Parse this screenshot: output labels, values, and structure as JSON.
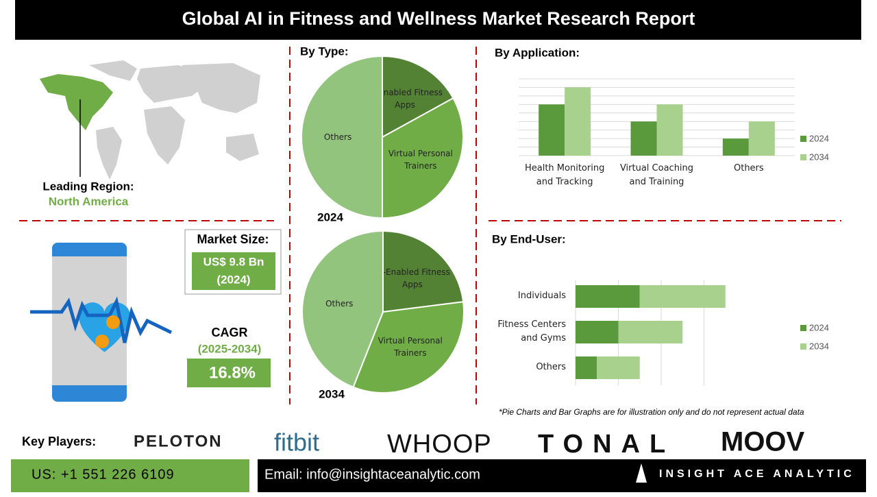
{
  "header": {
    "title": "Global AI in Fitness and Wellness Market Research Report"
  },
  "region": {
    "label": "Leading Region:",
    "value": "North America"
  },
  "market_size": {
    "label": "Market Size:",
    "value": "US$ 9.8 Bn",
    "year": "(2024)"
  },
  "cagr": {
    "label": "CAGR",
    "period": "(2025-2034)",
    "value": "16.8%"
  },
  "chart_data": [
    {
      "type": "pie",
      "title": "By Type:",
      "subtitle": "2024",
      "categories": [
        "AI-Enabled Fitness Apps",
        "Virtual Personal Trainers",
        "Others"
      ],
      "values": [
        17,
        33,
        50
      ],
      "colors": [
        "#548235",
        "#70ad47",
        "#93c47d"
      ]
    },
    {
      "type": "pie",
      "subtitle": "2034",
      "categories": [
        "AI-Enabled Fitness Apps",
        "Virtual Personal Trainers",
        "Others"
      ],
      "values": [
        23,
        33,
        44
      ],
      "colors": [
        "#548235",
        "#70ad47",
        "#93c47d"
      ]
    },
    {
      "type": "bar",
      "title": "By Application:",
      "categories": [
        "Health Monitoring and Tracking",
        "Virtual Coaching and Training",
        "Others"
      ],
      "series": [
        {
          "name": "2024",
          "color": "#5b9a3c",
          "values": [
            6,
            4,
            2
          ]
        },
        {
          "name": "2034",
          "color": "#a9d18e",
          "values": [
            8,
            6,
            4
          ]
        }
      ],
      "ylim": [
        0,
        9
      ],
      "yticks": [
        0,
        1,
        2,
        3,
        4,
        5,
        6,
        7,
        8,
        9
      ],
      "grid": true
    },
    {
      "type": "hbar-stacked",
      "title": "By End-User:",
      "categories": [
        "Individuals",
        "Fitness Centers and Gyms",
        "Others"
      ],
      "series": [
        {
          "name": "2024",
          "color": "#5b9a3c",
          "values": [
            1.5,
            1,
            0.5
          ]
        },
        {
          "name": "2034",
          "color": "#a9d18e",
          "values": [
            2,
            1.5,
            1
          ]
        }
      ],
      "xlim": [
        0,
        3.5
      ],
      "xticks": [
        0,
        1,
        2,
        3
      ],
      "grid": true
    }
  ],
  "note": "*Pie Charts and Bar Graphs are for illustration only and do not represent actual data",
  "key_players": {
    "label": "Key Players:",
    "logos": [
      "PELOTON",
      "fitbit",
      "WHOOP",
      "TONAL",
      "MOOV"
    ]
  },
  "footer": {
    "phone": "US: +1 551 226 6109",
    "email": "Email: info@insightaceanalytic.com",
    "brand": "INSIGHT ACE ANALYTIC"
  }
}
